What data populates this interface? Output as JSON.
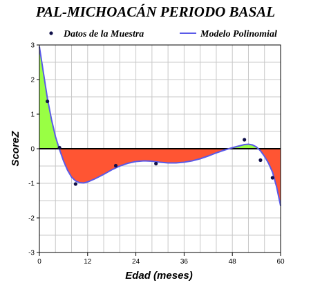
{
  "chart_data": {
    "type": "line",
    "title": "PAL-MICHOACÁN PERIODO BASAL",
    "xlabel": "Edad (meses)",
    "ylabel": "ScoreZ",
    "xlim": [
      0,
      60
    ],
    "ylim": [
      -3,
      3
    ],
    "x_ticks": [
      0,
      12,
      24,
      36,
      48,
      60
    ],
    "y_ticks": [
      -3,
      -2,
      -1,
      0,
      1,
      2,
      3
    ],
    "x_tick_labels": [
      "0",
      "12",
      "24",
      "36",
      "48",
      "60"
    ],
    "y_tick_labels": [
      "-3",
      "-2",
      "-1",
      "0",
      "1",
      "2",
      "3"
    ],
    "grid": true,
    "legend_position": "top",
    "series": [
      {
        "name": "Datos de la Muestra",
        "kind": "scatter",
        "color": "#10104a",
        "points": [
          {
            "x": 2,
            "y": 1.37
          },
          {
            "x": 5,
            "y": 0.03
          },
          {
            "x": 9,
            "y": -1.02
          },
          {
            "x": 19,
            "y": -0.49
          },
          {
            "x": 29,
            "y": -0.43
          },
          {
            "x": 51,
            "y": 0.26
          },
          {
            "x": 55,
            "y": -0.33
          },
          {
            "x": 58,
            "y": -0.84
          }
        ]
      },
      {
        "name": "Modelo Polinomial",
        "kind": "line",
        "color": "#5a5ae8",
        "points": [
          {
            "x": 0,
            "y": 2.95
          },
          {
            "x": 1,
            "y": 2.2
          },
          {
            "x": 2,
            "y": 1.45
          },
          {
            "x": 3,
            "y": 0.85
          },
          {
            "x": 4,
            "y": 0.35
          },
          {
            "x": 5,
            "y": -0.02
          },
          {
            "x": 6,
            "y": -0.35
          },
          {
            "x": 7,
            "y": -0.62
          },
          {
            "x": 8,
            "y": -0.82
          },
          {
            "x": 9,
            "y": -0.93
          },
          {
            "x": 10,
            "y": -0.98
          },
          {
            "x": 11,
            "y": -0.99
          },
          {
            "x": 12,
            "y": -0.96
          },
          {
            "x": 14,
            "y": -0.86
          },
          {
            "x": 16,
            "y": -0.74
          },
          {
            "x": 18,
            "y": -0.61
          },
          {
            "x": 20,
            "y": -0.5
          },
          {
            "x": 22,
            "y": -0.42
          },
          {
            "x": 24,
            "y": -0.37
          },
          {
            "x": 26,
            "y": -0.35
          },
          {
            "x": 28,
            "y": -0.36
          },
          {
            "x": 30,
            "y": -0.39
          },
          {
            "x": 32,
            "y": -0.41
          },
          {
            "x": 34,
            "y": -0.41
          },
          {
            "x": 36,
            "y": -0.39
          },
          {
            "x": 38,
            "y": -0.35
          },
          {
            "x": 40,
            "y": -0.29
          },
          {
            "x": 42,
            "y": -0.21
          },
          {
            "x": 44,
            "y": -0.12
          },
          {
            "x": 46,
            "y": -0.04
          },
          {
            "x": 48,
            "y": 0.03
          },
          {
            "x": 50,
            "y": 0.09
          },
          {
            "x": 51,
            "y": 0.12
          },
          {
            "x": 52,
            "y": 0.13
          },
          {
            "x": 53,
            "y": 0.11
          },
          {
            "x": 54,
            "y": 0.05
          },
          {
            "x": 55,
            "y": -0.06
          },
          {
            "x": 56,
            "y": -0.22
          },
          {
            "x": 57,
            "y": -0.42
          },
          {
            "x": 58,
            "y": -0.68
          },
          {
            "x": 59,
            "y": -1.1
          },
          {
            "x": 60,
            "y": -1.65
          }
        ]
      }
    ],
    "fill_above_zero_color": "#99ff44",
    "fill_below_zero_color": "#ff5533",
    "zero_line_color": "#000000"
  }
}
